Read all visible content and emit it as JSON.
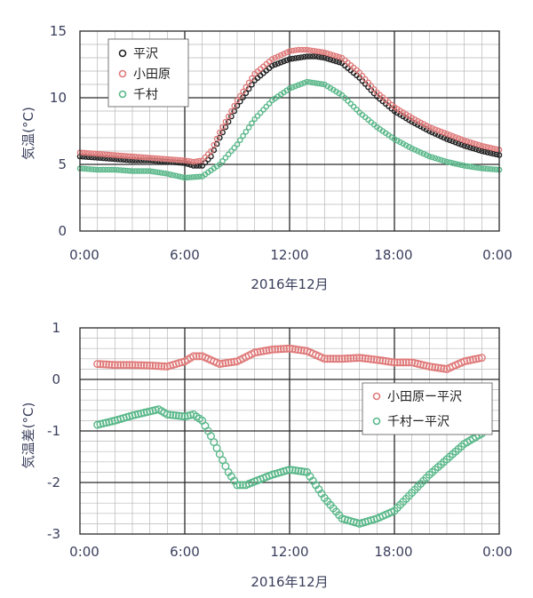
{
  "chart_data": [
    {
      "type": "scatter",
      "xlabel": "2016年12月",
      "ylabel": "気温(°C)",
      "x_tick_labels": [
        "0:00",
        "6:00",
        "12:00",
        "18:00",
        "0:00"
      ],
      "xlim": [
        0,
        24
      ],
      "ylim": [
        0,
        15
      ],
      "y_ticks": [
        0,
        5,
        10,
        15
      ],
      "grid": "on",
      "legend": "top-left",
      "series": [
        {
          "name": "平沢",
          "color": "#222222",
          "x": [
            0,
            1,
            2,
            3,
            4,
            5,
            6,
            6.5,
            7,
            7.5,
            8,
            9,
            10,
            11,
            12,
            12.5,
            13,
            13.5,
            14,
            15,
            16,
            17,
            18,
            19,
            20,
            21,
            22,
            23,
            24
          ],
          "y": [
            5.6,
            5.5,
            5.4,
            5.3,
            5.3,
            5.2,
            5.1,
            4.9,
            4.9,
            5.6,
            7.0,
            9.4,
            11.3,
            12.4,
            12.9,
            13.0,
            13.1,
            13.1,
            13.0,
            12.6,
            11.5,
            10.1,
            9.0,
            8.2,
            7.5,
            6.9,
            6.4,
            6.0,
            5.7
          ]
        },
        {
          "name": "小田原",
          "color": "#e07a7a",
          "x": [
            0,
            1,
            2,
            3,
            4,
            5,
            6,
            6.5,
            7,
            7.5,
            8,
            9,
            10,
            11,
            12,
            12.5,
            13,
            13.5,
            14,
            15,
            16,
            17,
            18,
            19,
            20,
            21,
            22,
            23,
            24
          ],
          "y": [
            5.9,
            5.8,
            5.7,
            5.6,
            5.5,
            5.4,
            5.3,
            5.2,
            5.3,
            6.0,
            7.4,
            9.8,
            11.8,
            12.9,
            13.5,
            13.6,
            13.6,
            13.5,
            13.4,
            13.0,
            11.9,
            10.4,
            9.3,
            8.5,
            7.8,
            7.3,
            6.8,
            6.4,
            6.1
          ]
        },
        {
          "name": "千村",
          "color": "#5ab88a",
          "x": [
            0,
            1,
            2,
            3,
            4,
            5,
            6,
            7,
            8,
            9,
            10,
            11,
            12,
            13,
            14,
            15,
            16,
            17,
            18,
            19,
            20,
            21,
            22,
            23,
            24
          ],
          "y": [
            4.7,
            4.6,
            4.6,
            4.5,
            4.5,
            4.3,
            4.0,
            4.1,
            5.0,
            6.5,
            8.4,
            9.8,
            10.7,
            11.2,
            11.0,
            10.2,
            8.9,
            7.8,
            6.9,
            6.2,
            5.6,
            5.2,
            4.9,
            4.7,
            4.6
          ]
        }
      ]
    },
    {
      "type": "scatter",
      "xlabel": "2016年12月",
      "ylabel": "気温差(°C)",
      "x_tick_labels": [
        "0:00",
        "6:00",
        "12:00",
        "18:00",
        "0:00"
      ],
      "xlim": [
        0,
        24
      ],
      "ylim": [
        -3,
        1
      ],
      "y_ticks": [
        1,
        0,
        -1,
        -2,
        -3
      ],
      "grid": "on",
      "legend": "right",
      "series": [
        {
          "name": "小田原ー平沢",
          "color": "#e07a7a",
          "x": [
            1,
            2,
            3,
            4,
            5,
            6,
            6.5,
            7,
            8,
            9,
            10,
            11,
            12,
            13,
            14,
            15,
            16,
            17,
            18,
            19,
            20,
            21,
            22,
            23
          ],
          "y": [
            0.3,
            0.28,
            0.28,
            0.27,
            0.25,
            0.35,
            0.45,
            0.45,
            0.3,
            0.35,
            0.52,
            0.58,
            0.6,
            0.55,
            0.4,
            0.4,
            0.42,
            0.38,
            0.33,
            0.33,
            0.25,
            0.2,
            0.35,
            0.42
          ]
        },
        {
          "name": "千村ー平沢",
          "color": "#5ab88a",
          "x": [
            1,
            2,
            3,
            4,
            4.5,
            5,
            6,
            6.5,
            7,
            7.5,
            8,
            8.5,
            9,
            9.5,
            10,
            11,
            12,
            13,
            14,
            15,
            16,
            17,
            18,
            19,
            20,
            21,
            22,
            23
          ],
          "y": [
            -0.88,
            -0.8,
            -0.7,
            -0.62,
            -0.58,
            -0.68,
            -0.72,
            -0.68,
            -0.8,
            -1.1,
            -1.45,
            -1.8,
            -2.05,
            -2.05,
            -1.98,
            -1.85,
            -1.75,
            -1.8,
            -2.3,
            -2.7,
            -2.8,
            -2.7,
            -2.55,
            -2.2,
            -1.85,
            -1.55,
            -1.25,
            -1.05
          ]
        }
      ]
    }
  ]
}
